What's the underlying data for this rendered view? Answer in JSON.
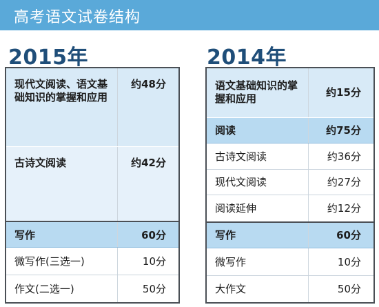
{
  "banner": {
    "title": "高考语文试卷结构"
  },
  "left": {
    "year": "2015年",
    "rows": [
      {
        "name": "现代文阅读、语文基础知识的掌握和应用",
        "score": "约48分"
      },
      {
        "name": "古诗文阅读",
        "score": "约42分"
      },
      {
        "name": "写作",
        "score": "60分"
      },
      {
        "name": "微写作(三选一)",
        "score": "10分"
      },
      {
        "name": "作文(二选一)",
        "score": "50分"
      }
    ]
  },
  "right": {
    "year": "2014年",
    "rows": [
      {
        "name": "语文基础知识的掌握和应用",
        "score": "约15分"
      },
      {
        "name": "阅读",
        "score": "约75分"
      },
      {
        "name": "古诗文阅读",
        "score": "约36分"
      },
      {
        "name": "现代文阅读",
        "score": "约27分"
      },
      {
        "name": "阅读延伸",
        "score": "约12分"
      },
      {
        "name": "写作",
        "score": "60分"
      },
      {
        "name": "微写作",
        "score": "10分"
      },
      {
        "name": "大作文",
        "score": "50分"
      }
    ]
  },
  "colors": {
    "banner": "#5aa9d9",
    "year_text": "#1f4e79",
    "highlight": "#b8daf1",
    "light": "#d8eaf7"
  }
}
